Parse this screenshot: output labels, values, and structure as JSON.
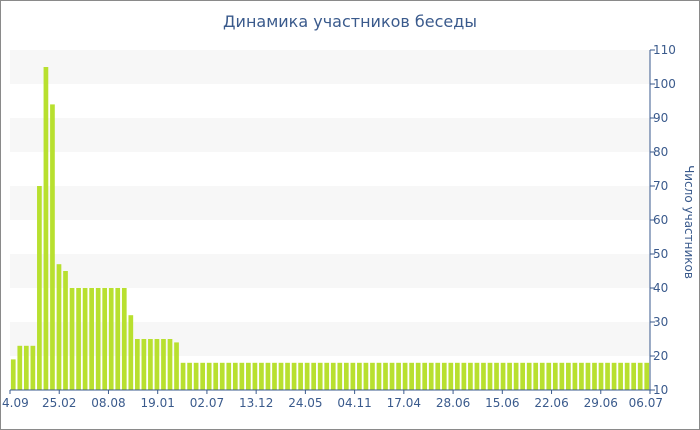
{
  "chart_data": {
    "type": "bar",
    "title": "Динамика участников беседы",
    "xlabel": "",
    "ylabel": "Число участников",
    "ylim": [
      10,
      110
    ],
    "yticks": [
      10,
      20,
      30,
      40,
      50,
      60,
      70,
      80,
      90,
      100,
      110
    ],
    "ytick_side": "right",
    "grid": "alternating horizontal bands",
    "colors": {
      "bar": "#b8e02f",
      "band": "#f7f7f7",
      "text": "#3a5a8c",
      "axis": "#3a5a8c",
      "frame": "#8a8a8a"
    },
    "xtick_labels": [
      "4.09",
      "25.02",
      "08.08",
      "19.01",
      "02.07",
      "13.12",
      "24.05",
      "04.11",
      "17.04",
      "28.06",
      "15.06",
      "22.06",
      "29.06",
      "06.07"
    ],
    "values": [
      19,
      23,
      23,
      23,
      70,
      105,
      94,
      47,
      45,
      40,
      40,
      40,
      40,
      40,
      40,
      40,
      40,
      40,
      32,
      25,
      25,
      25,
      25,
      25,
      25,
      24,
      18,
      18,
      18,
      18,
      18,
      18,
      18,
      18,
      18,
      18,
      18,
      18,
      18,
      18,
      18,
      18,
      18,
      18,
      18,
      18,
      18,
      18,
      18,
      18,
      18,
      18,
      18,
      18,
      18,
      18,
      18,
      18,
      18,
      18,
      18,
      18,
      18,
      18,
      18,
      18,
      18,
      18,
      18,
      18,
      18,
      18,
      18,
      18,
      18,
      18,
      18,
      18,
      18,
      18,
      18,
      18,
      18,
      18,
      18,
      18,
      18,
      18,
      18,
      18,
      18,
      18,
      18,
      18,
      18,
      18,
      18,
      18
    ]
  }
}
